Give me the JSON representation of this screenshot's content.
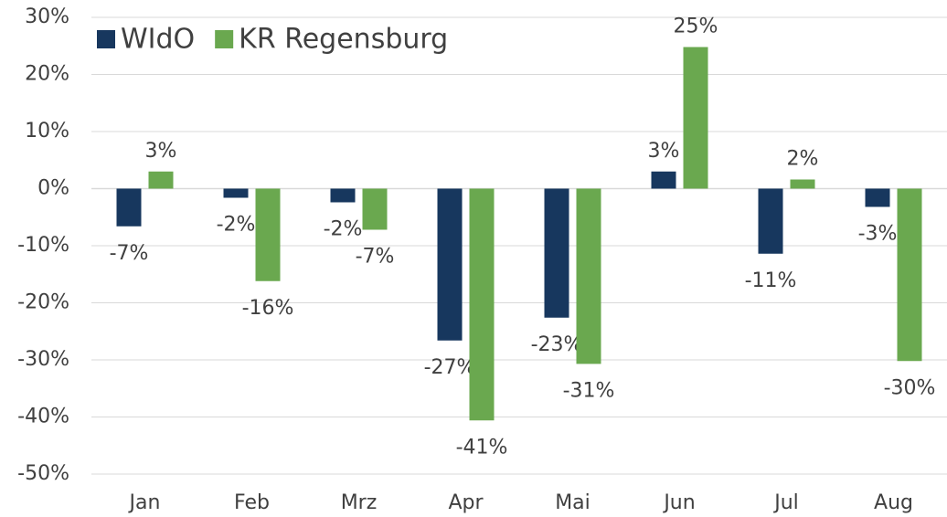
{
  "chart_data": {
    "type": "bar",
    "categories": [
      "Jan",
      "Feb",
      "Mrz",
      "Apr",
      "Mai",
      "Jun",
      "Jul",
      "Aug"
    ],
    "series": [
      {
        "name": "WIdO",
        "color": "#17375e",
        "values": [
          -6.6,
          -1.6,
          -2.4,
          -26.6,
          -22.6,
          3.0,
          -11.4,
          -3.2
        ],
        "value_labels": [
          "-7%",
          "-2%",
          "-2%",
          "-27%",
          "-23%",
          "3%",
          "-11%",
          "-3%"
        ]
      },
      {
        "name": "KR Regensburg",
        "color": "#6aa84f",
        "values": [
          3.0,
          -16.2,
          -7.2,
          -40.6,
          -30.7,
          24.8,
          1.6,
          -30.2
        ],
        "value_labels": [
          "3%",
          "-16%",
          "-7%",
          "-41%",
          "-31%",
          "25%",
          "2%",
          "-30%"
        ]
      }
    ],
    "ylim": [
      -50,
      30
    ],
    "yticks": [
      {
        "value": -50,
        "label": "-50%"
      },
      {
        "value": -40,
        "label": "-40%"
      },
      {
        "value": -30,
        "label": "-30%"
      },
      {
        "value": -20,
        "label": "-20%"
      },
      {
        "value": -10,
        "label": "-10%"
      },
      {
        "value": 0,
        "label": "0%"
      },
      {
        "value": 10,
        "label": "10%"
      },
      {
        "value": 20,
        "label": "20%"
      },
      {
        "value": 30,
        "label": "30%"
      }
    ],
    "grid": true,
    "legend": "top-left"
  }
}
